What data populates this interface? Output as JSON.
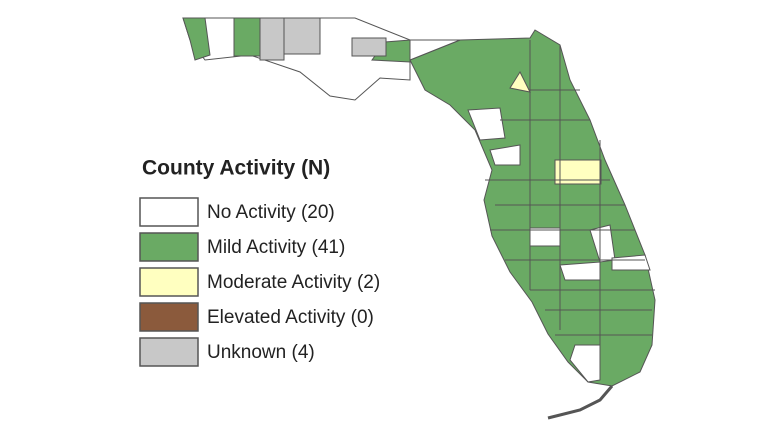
{
  "legend": {
    "title": "County Activity (N)",
    "items": [
      {
        "label": "No Activity (20)",
        "color": "#ffffff"
      },
      {
        "label": "Mild Activity (41)",
        "color": "#6aaa64"
      },
      {
        "label": "Moderate Activity (2)",
        "color": "#ffffc0"
      },
      {
        "label": "Elevated Activity (0)",
        "color": "#8b5a3c"
      },
      {
        "label": "Unknown (4)",
        "color": "#c8c8c8"
      }
    ]
  }
}
